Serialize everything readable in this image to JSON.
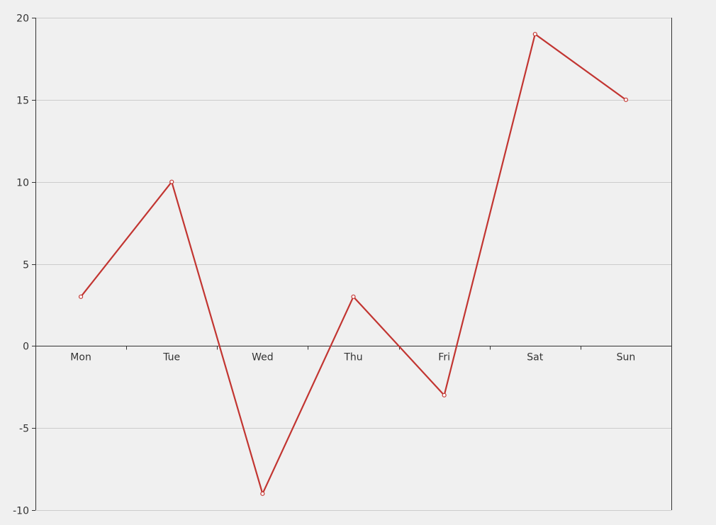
{
  "chart_data": {
    "type": "line",
    "categories": [
      "Mon",
      "Tue",
      "Wed",
      "Thu",
      "Fri",
      "Sat",
      "Sun"
    ],
    "series": [
      {
        "values": [
          3,
          10,
          -9,
          3,
          -3,
          19,
          15
        ]
      }
    ],
    "ylim": [
      -10,
      20
    ],
    "yticks": [
      -10,
      -5,
      0,
      5,
      10,
      15,
      20
    ],
    "grid": true,
    "colors": {
      "line": "#c23531",
      "grid": "#cccccc",
      "axis": "#333333",
      "text": "#333333",
      "background": "#f0f0f0"
    }
  }
}
